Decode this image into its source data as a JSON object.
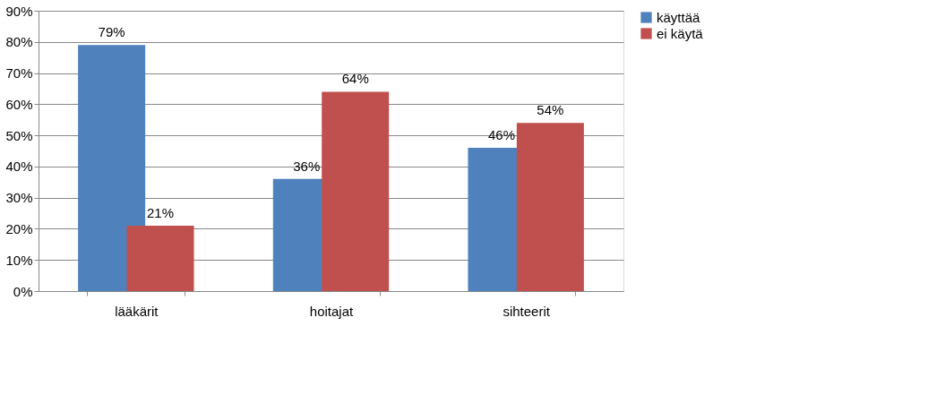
{
  "chart_data": {
    "type": "bar",
    "categories": [
      "lääkärit",
      "hoitajat",
      "sihteerit"
    ],
    "series": [
      {
        "name": "käyttää",
        "color": "#4f81bd",
        "values": [
          79,
          36,
          46
        ],
        "value_labels": [
          "79%",
          "36%",
          "46%"
        ]
      },
      {
        "name": "ei käytä",
        "color": "#c0504d",
        "values": [
          21,
          64,
          54
        ],
        "value_labels": [
          "21%",
          "64%",
          "54%"
        ]
      }
    ],
    "ylim": [
      0,
      90
    ],
    "yticks": [
      {
        "value": 0,
        "label": "0%"
      },
      {
        "value": 10,
        "label": "10%"
      },
      {
        "value": 20,
        "label": "20%"
      },
      {
        "value": 30,
        "label": "30%"
      },
      {
        "value": 40,
        "label": "40%"
      },
      {
        "value": 50,
        "label": "50%"
      },
      {
        "value": 60,
        "label": "60%"
      },
      {
        "value": 70,
        "label": "70%"
      },
      {
        "value": 80,
        "label": "80%"
      },
      {
        "value": 90,
        "label": "90%"
      }
    ],
    "grid": "y",
    "legend": "right"
  }
}
